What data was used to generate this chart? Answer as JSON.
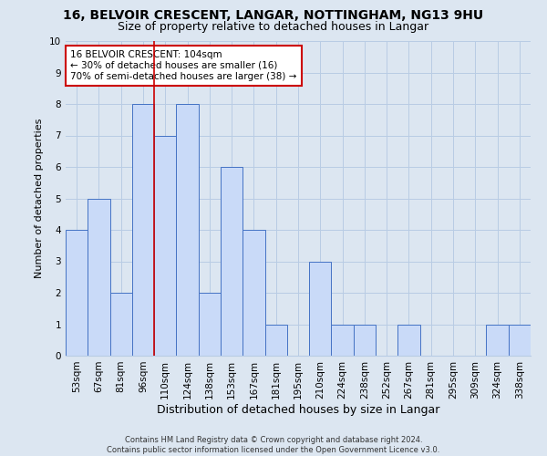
{
  "title": "16, BELVOIR CRESCENT, LANGAR, NOTTINGHAM, NG13 9HU",
  "subtitle": "Size of property relative to detached houses in Langar",
  "xlabel": "Distribution of detached houses by size in Langar",
  "ylabel": "Number of detached properties",
  "categories": [
    "53sqm",
    "67sqm",
    "81sqm",
    "96sqm",
    "110sqm",
    "124sqm",
    "138sqm",
    "153sqm",
    "167sqm",
    "181sqm",
    "195sqm",
    "210sqm",
    "224sqm",
    "238sqm",
    "252sqm",
    "267sqm",
    "281sqm",
    "295sqm",
    "309sqm",
    "324sqm",
    "338sqm"
  ],
  "values": [
    4,
    5,
    2,
    8,
    7,
    8,
    2,
    6,
    4,
    1,
    0,
    3,
    1,
    1,
    0,
    1,
    0,
    0,
    0,
    1,
    1
  ],
  "bar_color": "#c9daf8",
  "bar_edge_color": "#4472c4",
  "red_line_index": 3.5,
  "annotation_text": "16 BELVOIR CRESCENT: 104sqm\n← 30% of detached houses are smaller (16)\n70% of semi-detached houses are larger (38) →",
  "annotation_box_color": "#ffffff",
  "annotation_box_edge": "#cc0000",
  "ylim": [
    0,
    10
  ],
  "yticks": [
    0,
    1,
    2,
    3,
    4,
    5,
    6,
    7,
    8,
    9,
    10
  ],
  "grid_color": "#b8cce4",
  "background_color": "#dce6f1",
  "plot_background": "#dce6f1",
  "footer": "Contains HM Land Registry data © Crown copyright and database right 2024.\nContains public sector information licensed under the Open Government Licence v3.0.",
  "red_line_color": "#cc0000",
  "title_fontsize": 10,
  "subtitle_fontsize": 9,
  "tick_fontsize": 7.5,
  "ylabel_fontsize": 8,
  "xlabel_fontsize": 9,
  "footer_fontsize": 6,
  "annotation_fontsize": 7.5
}
